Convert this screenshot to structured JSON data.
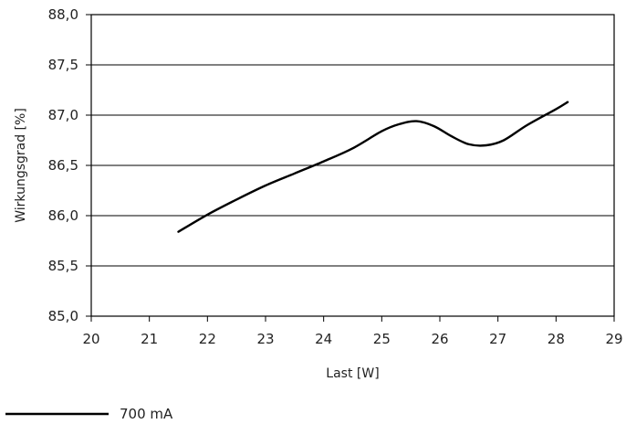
{
  "chart_data": {
    "type": "line",
    "xlabel": "Last [W]",
    "ylabel": "Wirkungsgrad [%]",
    "xlim": [
      20,
      29
    ],
    "ylim": [
      85.0,
      88.0
    ],
    "x_ticks": [
      {
        "value": 20,
        "label": "20"
      },
      {
        "value": 21,
        "label": "21"
      },
      {
        "value": 22,
        "label": "22"
      },
      {
        "value": 23,
        "label": "23"
      },
      {
        "value": 24,
        "label": "24"
      },
      {
        "value": 25,
        "label": "25"
      },
      {
        "value": 26,
        "label": "26"
      },
      {
        "value": 27,
        "label": "27"
      },
      {
        "value": 28,
        "label": "28"
      },
      {
        "value": 29,
        "label": "29"
      }
    ],
    "y_ticks": [
      {
        "value": 85.0,
        "label": "85,0"
      },
      {
        "value": 85.5,
        "label": "85,5"
      },
      {
        "value": 86.0,
        "label": "86,0"
      },
      {
        "value": 86.5,
        "label": "86,5"
      },
      {
        "value": 87.0,
        "label": "87,0"
      },
      {
        "value": 87.5,
        "label": "87,5"
      },
      {
        "value": 88.0,
        "label": "88,0"
      }
    ],
    "grid": {
      "horizontal": true,
      "vertical": false
    },
    "legend_position": "bottom-left",
    "series": [
      {
        "name": "700 mA",
        "color": "#000000",
        "x": [
          21.5,
          22.0,
          22.5,
          23.0,
          23.5,
          24.0,
          24.5,
          25.0,
          25.3,
          25.6,
          25.9,
          26.2,
          26.5,
          26.8,
          27.1,
          27.5,
          28.0,
          28.2
        ],
        "y": [
          85.84,
          86.01,
          86.16,
          86.3,
          86.42,
          86.54,
          86.67,
          86.84,
          86.91,
          86.94,
          86.89,
          86.79,
          86.71,
          86.7,
          86.75,
          86.9,
          87.06,
          87.13
        ]
      }
    ]
  }
}
